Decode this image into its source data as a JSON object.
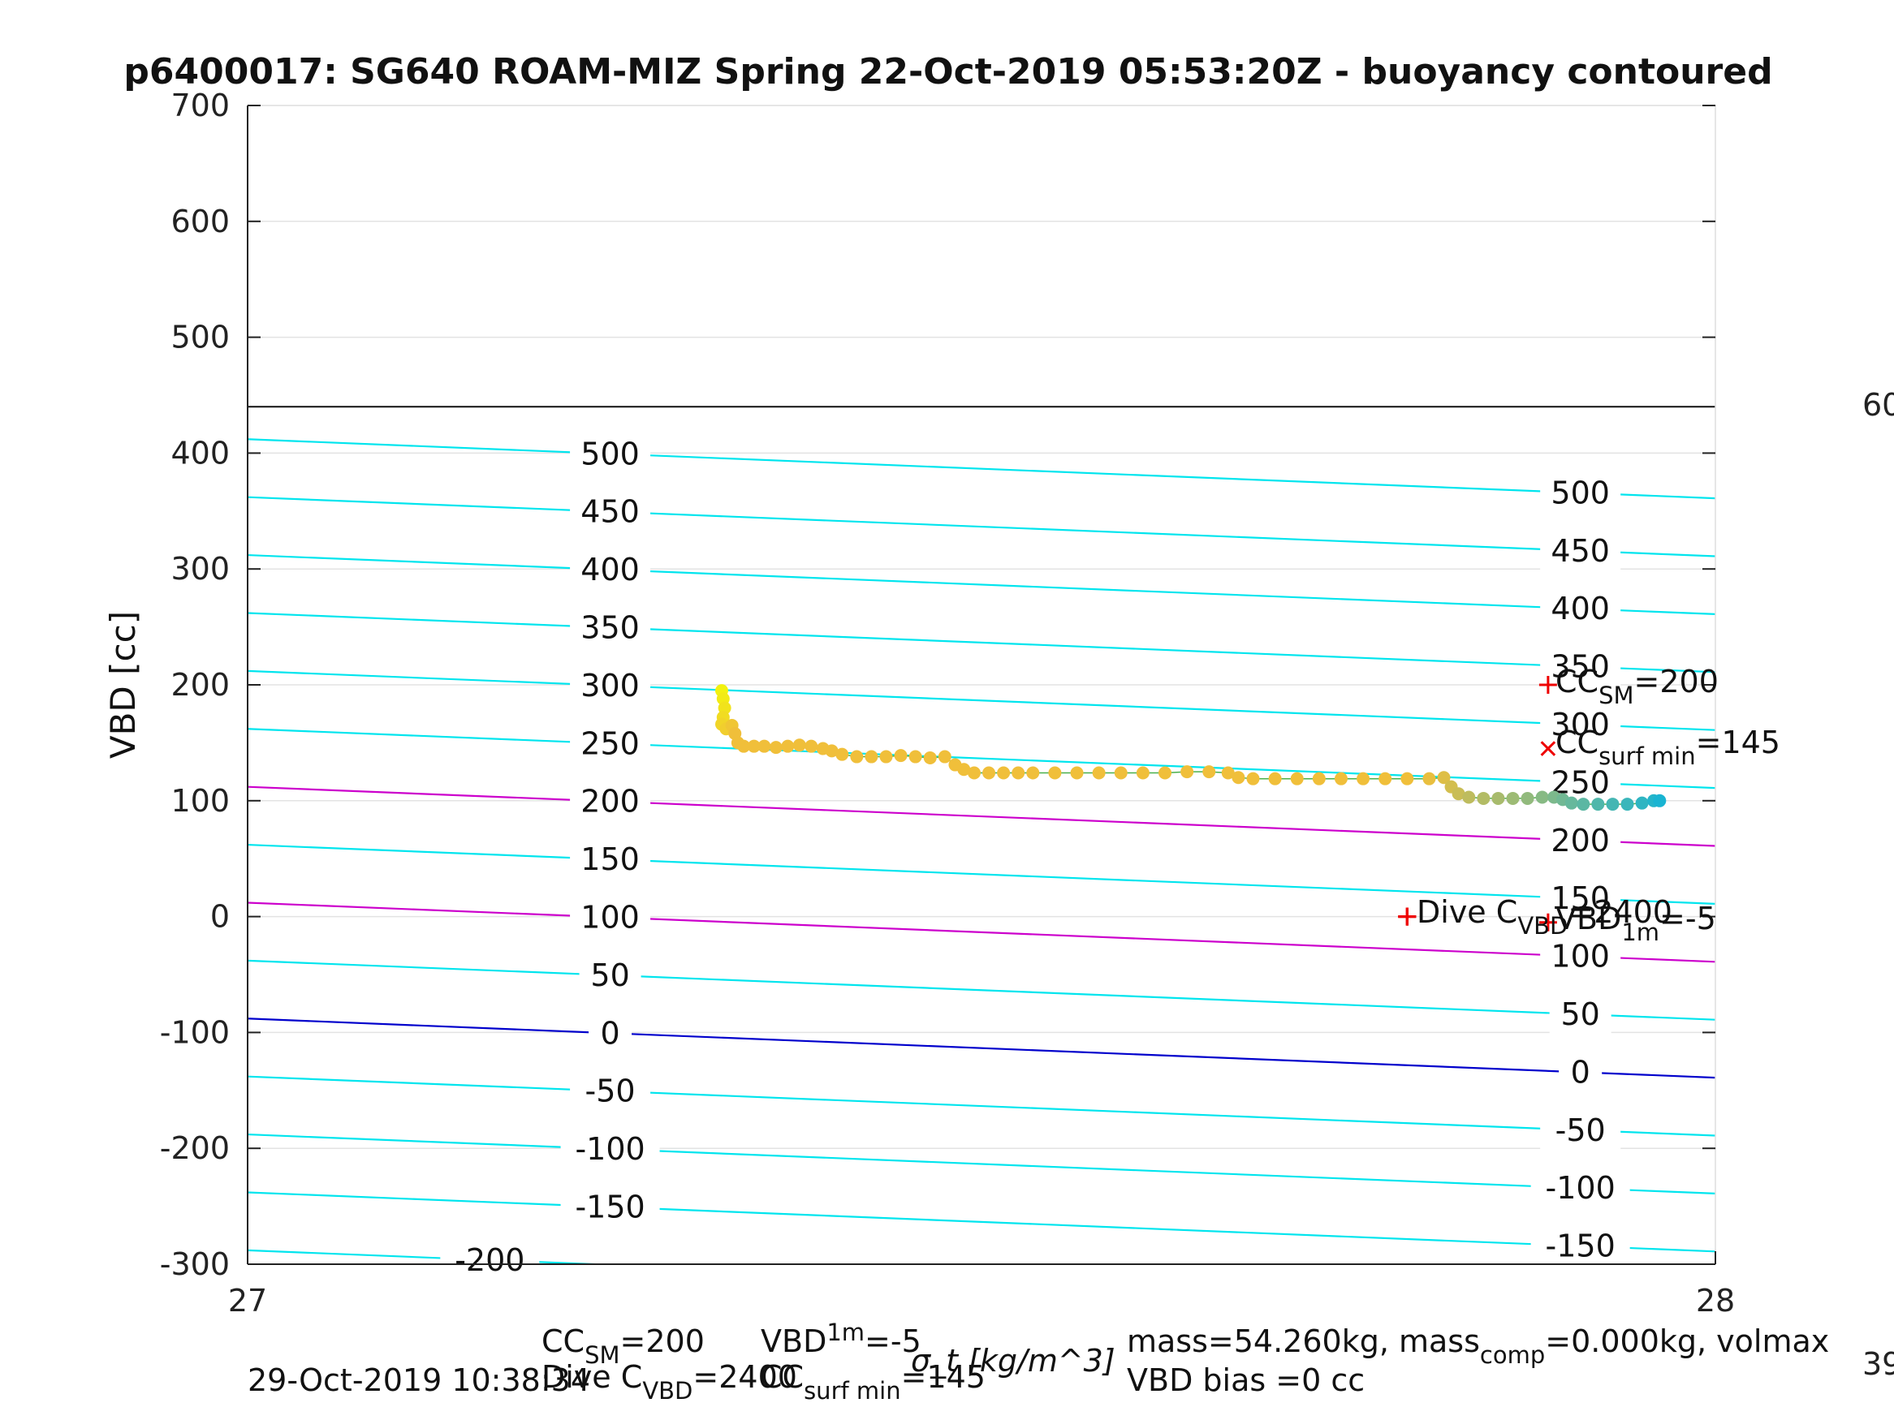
{
  "chart_data": {
    "type": "scatter",
    "title": "p6400017: SG640 ROAM-MIZ Spring 22-Oct-2019 05:53:20Z - buoyancy contoured",
    "xlabel": "σ_t [kg/m^3]",
    "ylabel": "VBD [cc]",
    "xlim": [
      27,
      28
    ],
    "ylim": [
      -300,
      700
    ],
    "x_ticks": [
      "27",
      "28"
    ],
    "y_ticks": [
      "-300",
      "-200",
      "-100",
      "0",
      "100",
      "200",
      "300",
      "400",
      "500",
      "600",
      "700"
    ],
    "grid": true,
    "reference_line_vbd": 440,
    "right_edge_labels": [
      "60",
      "39"
    ],
    "colors": {
      "contour": "#00e5ee",
      "contour_highlight": "#cc00cc",
      "zero_contour": "#0000cc",
      "markers": "#ee0000",
      "axes": "#222222",
      "grid": "#e3e3e3"
    },
    "contours": [
      {
        "level": 500,
        "label": "500",
        "left_label": "500",
        "right_label": "500",
        "y_at_x27": 412,
        "y_at_x28": 361
      },
      {
        "level": 450,
        "label": "450",
        "left_label": "450",
        "right_label": "450",
        "y_at_x27": 362,
        "y_at_x28": 311
      },
      {
        "level": 400,
        "label": "400",
        "left_label": "400",
        "right_label": "400",
        "y_at_x27": 312,
        "y_at_x28": 261
      },
      {
        "level": 350,
        "label": "350",
        "left_label": "350",
        "right_label": "350",
        "y_at_x27": 262,
        "y_at_x28": 211
      },
      {
        "level": 300,
        "label": "300",
        "left_label": "300",
        "right_label": "300",
        "y_at_x27": 212,
        "y_at_x28": 161
      },
      {
        "level": 250,
        "label": "250",
        "left_label": "250",
        "right_label": "250",
        "y_at_x27": 162,
        "y_at_x28": 111
      },
      {
        "level": 200,
        "label": "200",
        "left_label": "200",
        "right_label": "200",
        "y_at_x27": 112,
        "y_at_x28": 61,
        "highlight": true
      },
      {
        "level": 150,
        "label": "150",
        "left_label": "150",
        "right_label": "150",
        "y_at_x27": 62,
        "y_at_x28": 11
      },
      {
        "level": 100,
        "label": "100",
        "left_label": "100",
        "right_label": "100",
        "y_at_x27": 12,
        "y_at_x28": -39,
        "highlight": true
      },
      {
        "level": 50,
        "label": "50",
        "left_label": "50",
        "right_label": "50",
        "y_at_x27": -38,
        "y_at_x28": -89
      },
      {
        "level": 0,
        "label": "0",
        "left_label": "0",
        "right_label": "0",
        "y_at_x27": -88,
        "y_at_x28": -139,
        "zero": true
      },
      {
        "level": -50,
        "label": "-50",
        "left_label": "-50",
        "right_label": "-50",
        "y_at_x27": -138,
        "y_at_x28": -189
      },
      {
        "level": -100,
        "label": "-100",
        "left_label": "-100",
        "right_label": "-100",
        "y_at_x27": -188,
        "y_at_x28": -239
      },
      {
        "level": -150,
        "label": "-150",
        "left_label": "-150",
        "right_label": "-150",
        "y_at_x27": -238,
        "y_at_x28": -289
      },
      {
        "level": -200,
        "label": "-200",
        "left_label": "-200",
        "right_label": "",
        "y_at_x27": -288,
        "y_at_x28": -339
      }
    ],
    "series": [
      {
        "values": [
          {
            "x": 27.323,
            "y": 195
          },
          {
            "x": 27.324,
            "y": 188
          },
          {
            "x": 27.325,
            "y": 180
          },
          {
            "x": 27.324,
            "y": 172
          },
          {
            "x": 27.323,
            "y": 166
          },
          {
            "x": 27.326,
            "y": 162
          },
          {
            "x": 27.33,
            "y": 165
          },
          {
            "x": 27.332,
            "y": 158
          },
          {
            "x": 27.334,
            "y": 150
          },
          {
            "x": 27.338,
            "y": 147
          },
          {
            "x": 27.345,
            "y": 147
          },
          {
            "x": 27.352,
            "y": 147
          },
          {
            "x": 27.36,
            "y": 146
          },
          {
            "x": 27.368,
            "y": 147
          },
          {
            "x": 27.376,
            "y": 148
          },
          {
            "x": 27.384,
            "y": 147
          },
          {
            "x": 27.392,
            "y": 145
          },
          {
            "x": 27.398,
            "y": 143
          },
          {
            "x": 27.405,
            "y": 140
          },
          {
            "x": 27.415,
            "y": 138
          },
          {
            "x": 27.425,
            "y": 138
          },
          {
            "x": 27.435,
            "y": 138
          },
          {
            "x": 27.445,
            "y": 139
          },
          {
            "x": 27.455,
            "y": 138
          },
          {
            "x": 27.465,
            "y": 137
          },
          {
            "x": 27.475,
            "y": 138
          },
          {
            "x": 27.482,
            "y": 131
          },
          {
            "x": 27.488,
            "y": 127
          },
          {
            "x": 27.495,
            "y": 124
          },
          {
            "x": 27.505,
            "y": 124
          },
          {
            "x": 27.515,
            "y": 124
          },
          {
            "x": 27.525,
            "y": 124
          },
          {
            "x": 27.535,
            "y": 124
          },
          {
            "x": 27.55,
            "y": 124
          },
          {
            "x": 27.565,
            "y": 124
          },
          {
            "x": 27.58,
            "y": 124
          },
          {
            "x": 27.595,
            "y": 124
          },
          {
            "x": 27.61,
            "y": 124
          },
          {
            "x": 27.625,
            "y": 124
          },
          {
            "x": 27.64,
            "y": 125
          },
          {
            "x": 27.655,
            "y": 125
          },
          {
            "x": 27.668,
            "y": 124
          },
          {
            "x": 27.675,
            "y": 120
          },
          {
            "x": 27.685,
            "y": 119
          },
          {
            "x": 27.7,
            "y": 119
          },
          {
            "x": 27.715,
            "y": 119
          },
          {
            "x": 27.73,
            "y": 119
          },
          {
            "x": 27.745,
            "y": 119
          },
          {
            "x": 27.76,
            "y": 119
          },
          {
            "x": 27.775,
            "y": 119
          },
          {
            "x": 27.79,
            "y": 119
          },
          {
            "x": 27.805,
            "y": 119
          },
          {
            "x": 27.815,
            "y": 120
          },
          {
            "x": 27.82,
            "y": 112
          },
          {
            "x": 27.825,
            "y": 106
          },
          {
            "x": 27.832,
            "y": 103
          },
          {
            "x": 27.842,
            "y": 102
          },
          {
            "x": 27.852,
            "y": 102
          },
          {
            "x": 27.862,
            "y": 102
          },
          {
            "x": 27.872,
            "y": 102
          },
          {
            "x": 27.882,
            "y": 103
          },
          {
            "x": 27.89,
            "y": 103
          },
          {
            "x": 27.896,
            "y": 101
          },
          {
            "x": 27.902,
            "y": 98
          },
          {
            "x": 27.91,
            "y": 97
          },
          {
            "x": 27.92,
            "y": 97
          },
          {
            "x": 27.93,
            "y": 97
          },
          {
            "x": 27.94,
            "y": 97
          },
          {
            "x": 27.95,
            "y": 98
          },
          {
            "x": 27.958,
            "y": 100
          },
          {
            "x": 27.962,
            "y": 100
          }
        ],
        "color_start": "#f2f20f",
        "color_mid": "#f0bf3a",
        "color_end": "#19b4d2"
      }
    ],
    "markers": [
      {
        "symbol": "plus",
        "x": 27.79,
        "y": 0
      },
      {
        "symbol": "plus",
        "x": 27.79,
        "y": 0
      },
      {
        "symbol": "plus",
        "x": 27.79,
        "y": 0
      },
      {
        "symbol": "plus",
        "x": 27.79,
        "y": 0
      },
      {
        "symbol": "plus",
        "x": 27.886,
        "y": 200
      },
      {
        "symbol": "x",
        "x": 27.886,
        "y": 145
      },
      {
        "symbol": "plus",
        "x": 27.886,
        "y": -5
      }
    ],
    "annotations": {
      "cc_sm": {
        "base": "CC",
        "sub": "SM",
        "tail": "=200"
      },
      "cc_surf_min": {
        "base": "CC",
        "sub": "surf min",
        "tail": "=145"
      },
      "dive_c": {
        "base": "Dive C",
        "sub": "VBD",
        "tail": "=2400"
      },
      "vbd_1m": {
        "base": "VBD",
        "sub": "1m",
        "tail": "=-5"
      }
    },
    "footer": {
      "timestamp": "29-Oct-2019 10:38:34",
      "cc_sm": {
        "base": "CC",
        "sub": "SM",
        "tail": "=200"
      },
      "vbd_1m": {
        "base": "VBD",
        "sub": "1m",
        "tail": "=-5"
      },
      "dive_c": {
        "base": "Dive C",
        "sub": "VBD",
        "tail": "=2400"
      },
      "cc_surf_min": {
        "base": "CC",
        "sub": "surf min",
        "tail": "=145"
      },
      "mass": {
        "base": "mass=54.260kg, mass",
        "sub": "comp",
        "tail": "=0.000kg, volmax"
      },
      "vbd_bias": "VBD bias =0 cc"
    }
  }
}
